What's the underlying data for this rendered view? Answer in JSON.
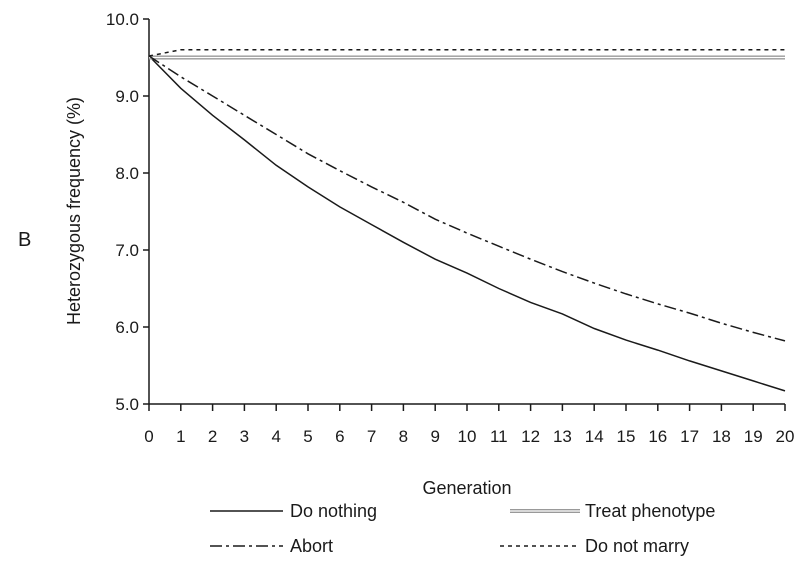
{
  "panel_label": "B",
  "chart_data": {
    "type": "line",
    "title": "",
    "xlabel": "Generation",
    "ylabel": "Heterozygous frequency (%)",
    "xlim": [
      0,
      20
    ],
    "ylim": [
      5.0,
      10.0
    ],
    "x": [
      0,
      1,
      2,
      3,
      4,
      5,
      6,
      7,
      8,
      9,
      10,
      11,
      12,
      13,
      14,
      15,
      16,
      17,
      18,
      19,
      20
    ],
    "x_tick_labels": [
      "0",
      "1",
      "2",
      "3",
      "4",
      "5",
      "6",
      "7",
      "8",
      "9",
      "10",
      "11",
      "12",
      "13",
      "14",
      "15",
      "16",
      "17",
      "18",
      "19",
      "20"
    ],
    "y_ticks": [
      5.0,
      6.0,
      7.0,
      8.0,
      9.0,
      10.0
    ],
    "y_tick_labels": [
      "5.0",
      "6.0",
      "7.0",
      "8.0",
      "9.0",
      "10.0"
    ],
    "grid": false,
    "legend_position": "bottom",
    "series": [
      {
        "name": "Do nothing",
        "style": "solid",
        "color": "#1a1a1a",
        "values": [
          9.52,
          9.1,
          8.75,
          8.43,
          8.1,
          7.82,
          7.56,
          7.33,
          7.1,
          6.88,
          6.7,
          6.5,
          6.32,
          6.17,
          5.98,
          5.83,
          5.7,
          5.56,
          5.43,
          5.3,
          5.17
        ]
      },
      {
        "name": "Treat phenotype",
        "style": "double",
        "color": "#999999",
        "values": [
          9.5,
          9.5,
          9.5,
          9.5,
          9.5,
          9.5,
          9.5,
          9.5,
          9.5,
          9.5,
          9.5,
          9.5,
          9.5,
          9.5,
          9.5,
          9.5,
          9.5,
          9.5,
          9.5,
          9.5,
          9.5
        ]
      },
      {
        "name": "Abort",
        "style": "dashdot",
        "color": "#1a1a1a",
        "values": [
          9.52,
          9.25,
          9.0,
          8.75,
          8.5,
          8.25,
          8.03,
          7.82,
          7.62,
          7.4,
          7.22,
          7.05,
          6.88,
          6.72,
          6.57,
          6.43,
          6.3,
          6.18,
          6.05,
          5.93,
          5.82
        ]
      },
      {
        "name": "Do not marry",
        "style": "dotted",
        "color": "#1a1a1a",
        "values": [
          9.52,
          9.6,
          9.6,
          9.6,
          9.6,
          9.6,
          9.6,
          9.6,
          9.6,
          9.6,
          9.6,
          9.6,
          9.6,
          9.6,
          9.6,
          9.6,
          9.6,
          9.6,
          9.6,
          9.6,
          9.6
        ]
      }
    ]
  }
}
